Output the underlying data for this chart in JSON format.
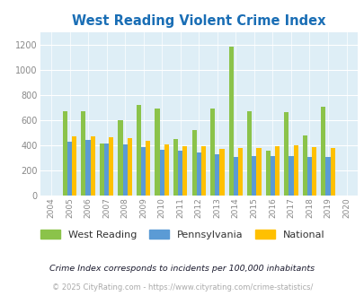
{
  "title": "West Reading Violent Crime Index",
  "years": [
    2004,
    2005,
    2006,
    2007,
    2008,
    2009,
    2010,
    2011,
    2012,
    2013,
    2014,
    2015,
    2016,
    2017,
    2018,
    2019,
    2020
  ],
  "west_reading": [
    null,
    670,
    670,
    415,
    600,
    720,
    690,
    450,
    520,
    690,
    1190,
    670,
    355,
    665,
    480,
    705,
    null
  ],
  "pennsylvania": [
    null,
    425,
    440,
    415,
    410,
    385,
    365,
    360,
    345,
    325,
    310,
    315,
    315,
    315,
    310,
    305,
    null
  ],
  "national": [
    null,
    470,
    470,
    465,
    455,
    435,
    405,
    395,
    395,
    370,
    375,
    380,
    395,
    400,
    385,
    380,
    null
  ],
  "colors": {
    "west_reading": "#8bc34a",
    "pennsylvania": "#5b9bd5",
    "national": "#ffc000"
  },
  "bg_color": "#deeef6",
  "ylim": [
    0,
    1300
  ],
  "yticks": [
    0,
    200,
    400,
    600,
    800,
    1000,
    1200
  ],
  "legend_labels": [
    "West Reading",
    "Pennsylvania",
    "National"
  ],
  "footnote1": "Crime Index corresponds to incidents per 100,000 inhabitants",
  "footnote2": "© 2025 CityRating.com - https://www.cityrating.com/crime-statistics/",
  "title_color": "#1a6eb5",
  "tick_color": "#888888",
  "footnote1_color": "#1a1a2e",
  "footnote2_color": "#aaaaaa",
  "legend_text_color": "#333333"
}
